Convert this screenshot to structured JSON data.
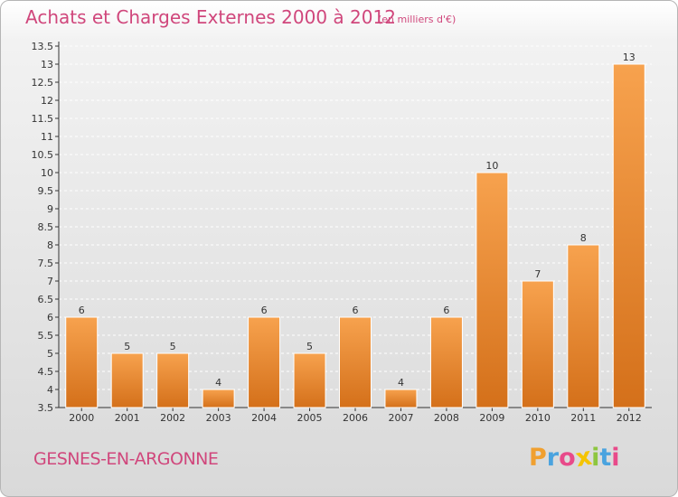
{
  "header": {
    "title": "Achats et Charges Externes 2000 à 2012",
    "subtitle": "(en milliers d'€)"
  },
  "footer": {
    "place": "GESNES-EN-ARGONNE",
    "logo_letters": [
      "P",
      "r",
      "o",
      "x",
      "i",
      "t",
      "i"
    ],
    "logo_colors": [
      "#f0a030",
      "#4aa3df",
      "#e84a8a",
      "#f5c400",
      "#8dc63f",
      "#4aa3df",
      "#e84a8a"
    ]
  },
  "chart_data": {
    "type": "bar",
    "categories": [
      "2000",
      "2001",
      "2002",
      "2003",
      "2004",
      "2005",
      "2006",
      "2007",
      "2008",
      "2009",
      "2010",
      "2011",
      "2012"
    ],
    "values": [
      6,
      5,
      5,
      4,
      6,
      5,
      6,
      4,
      6,
      10,
      7,
      8,
      13
    ],
    "data_labels": [
      "6",
      "5",
      "5",
      "4",
      "6",
      "5",
      "6",
      "4",
      "6",
      "10",
      "7",
      "8",
      "13"
    ],
    "y_ticks": [
      "3.5",
      "4",
      "4.5",
      "5",
      "5.5",
      "6",
      "6.5",
      "7",
      "7.5",
      "8",
      "8.5",
      "9",
      "9.5",
      "10",
      "10.5",
      "11",
      "11.5",
      "12",
      "12.5",
      "13",
      "13.5"
    ],
    "ylim": [
      3.5,
      13.5
    ],
    "bar_color": "#e8862a",
    "grid": true
  }
}
